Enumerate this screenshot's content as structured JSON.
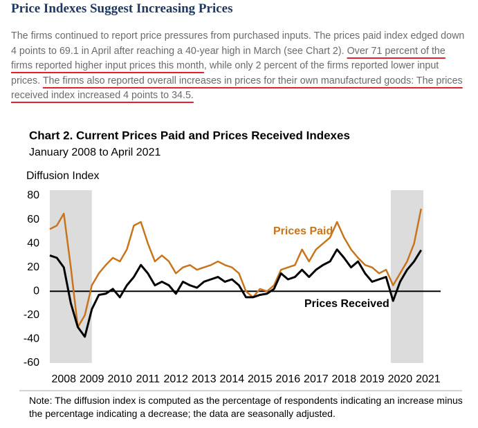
{
  "header": {
    "title": "Price Indexes Suggest Increasing Prices"
  },
  "paragraph": [
    {
      "text": "The firms continued to report price pressures from purchased inputs. The prices paid index edged down 4 points to 69.1 in April after reaching a 40-year high in March (see Chart 2). ",
      "underline": false
    },
    {
      "text": "Over 71 percent of the firms reported higher input prices this month",
      "underline": true
    },
    {
      "text": ", while only 2 percent of the firms reported lower input prices. ",
      "underline": false
    },
    {
      "text": "The firms also reported overall increases in prices for their own manufactured goods: The prices received index increased 4 points to 34.5.",
      "underline": true
    }
  ],
  "chart_data": {
    "type": "line",
    "title": "Chart 2. Current Prices Paid and Prices Received Indexes",
    "subtitle": "January 2008 to April 2021",
    "y_label": "Diffusion Index",
    "x": [
      2008,
      2008.25,
      2008.5,
      2008.75,
      2009,
      2009.25,
      2009.5,
      2009.75,
      2010,
      2010.25,
      2010.5,
      2010.75,
      2011,
      2011.25,
      2011.5,
      2011.75,
      2012,
      2012.25,
      2012.5,
      2012.75,
      2013,
      2013.25,
      2013.5,
      2013.75,
      2014,
      2014.25,
      2014.5,
      2014.75,
      2015,
      2015.25,
      2015.5,
      2015.75,
      2016,
      2016.25,
      2016.5,
      2016.75,
      2017,
      2017.25,
      2017.5,
      2017.75,
      2018,
      2018.25,
      2018.5,
      2018.75,
      2019,
      2019.25,
      2019.5,
      2019.75,
      2020,
      2020.25,
      2020.5,
      2020.75,
      2021,
      2021.25
    ],
    "series": [
      {
        "name": "Prices Paid",
        "color": "#c8741c",
        "values": [
          52,
          55,
          65,
          20,
          -30,
          -20,
          5,
          15,
          22,
          28,
          25,
          35,
          55,
          58,
          40,
          25,
          30,
          25,
          15,
          20,
          22,
          18,
          20,
          22,
          25,
          22,
          20,
          15,
          0,
          -5,
          2,
          0,
          5,
          18,
          20,
          22,
          35,
          25,
          35,
          40,
          45,
          58,
          45,
          35,
          28,
          22,
          20,
          15,
          18,
          5,
          15,
          25,
          40,
          69.1
        ]
      },
      {
        "name": "Prices Received",
        "color": "#000000",
        "values": [
          30,
          28,
          20,
          -10,
          -30,
          -38,
          -15,
          -3,
          -2,
          2,
          -5,
          5,
          12,
          22,
          15,
          5,
          8,
          5,
          -2,
          8,
          5,
          3,
          8,
          10,
          12,
          8,
          10,
          5,
          -5,
          -5,
          -3,
          -2,
          2,
          15,
          10,
          12,
          18,
          12,
          18,
          22,
          25,
          35,
          28,
          20,
          25,
          15,
          8,
          10,
          12,
          -8,
          8,
          18,
          25,
          34.5
        ]
      }
    ],
    "recessions": [
      [
        2008,
        2009.5
      ],
      [
        2020.17,
        2021.33
      ]
    ],
    "xlim": [
      2008,
      2021.33
    ],
    "xticks": [
      {
        "value": 2008.5,
        "label": "2008"
      },
      {
        "value": 2009.5,
        "label": "2009"
      },
      {
        "value": 2010.5,
        "label": "2010"
      },
      {
        "value": 2011.5,
        "label": "2011"
      },
      {
        "value": 2012.5,
        "label": "2012"
      },
      {
        "value": 2013.5,
        "label": "2013"
      },
      {
        "value": 2014.5,
        "label": "2014"
      },
      {
        "value": 2015.5,
        "label": "2015"
      },
      {
        "value": 2016.5,
        "label": "2016"
      },
      {
        "value": 2017.5,
        "label": "2017"
      },
      {
        "value": 2018.5,
        "label": "2018"
      },
      {
        "value": 2019.5,
        "label": "2019"
      },
      {
        "value": 2020.5,
        "label": "2020"
      },
      {
        "value": 2021.5,
        "label": "2021"
      }
    ],
    "ylim": [
      -60,
      80
    ],
    "yticks": [
      -60,
      -40,
      -20,
      0,
      20,
      40,
      60,
      80
    ],
    "grid": false,
    "note": "Note: The diffusion index is computed as the percentage of respondents indicating an increase minus the percentage indicating a decrease; the data are seasonally adjusted."
  }
}
